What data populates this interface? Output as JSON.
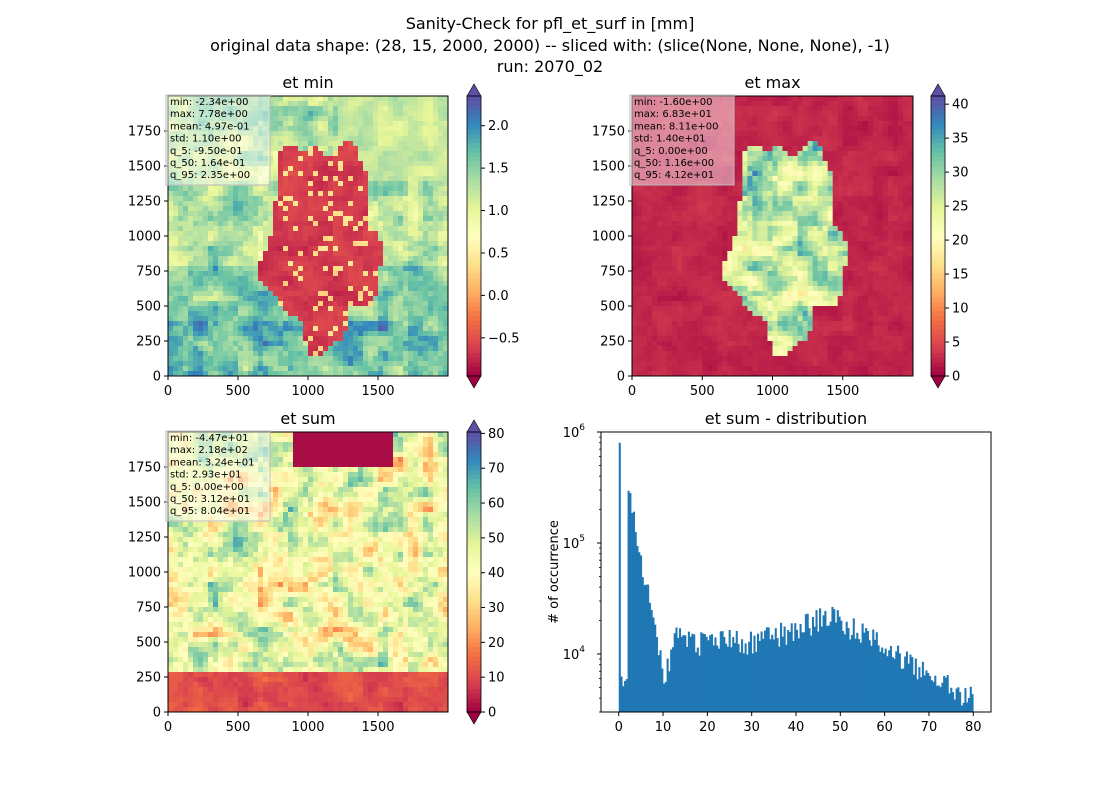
{
  "suptitle": [
    "Sanity-Check for pfl_et_surf in [mm]",
    "original data shape: (28, 15, 2000, 2000) -- sliced with: (slice(None, None, None), -1)",
    "run: 2070_02"
  ],
  "colormap": "Spectral",
  "chart_data": [
    {
      "type": "heatmap",
      "title": "et min",
      "x_ticks": [
        "0",
        "500",
        "1000",
        "1500"
      ],
      "y_ticks": [
        "0",
        "250",
        "500",
        "750",
        "1000",
        "1250",
        "1500",
        "1750"
      ],
      "xlim": [
        0,
        2000
      ],
      "ylim": [
        0,
        2000
      ],
      "colorbar_ticks": [
        "−0.5",
        "0.0",
        "0.5",
        "1.0",
        "1.5",
        "2.0"
      ],
      "colorbar_tick_values": [
        -0.5,
        0.0,
        0.5,
        1.0,
        1.5,
        2.0
      ],
      "colorbar_range": [
        -0.95,
        2.35
      ],
      "colorbar_extend": "both",
      "stats": [
        "min: -2.34e+00",
        "max: 7.78e+00",
        "mean: 4.97e-01",
        "std: 1.10e+00",
        "q_5: -9.50e-01",
        "q_50: 1.64e-01",
        "q_95: 2.35e+00"
      ]
    },
    {
      "type": "heatmap",
      "title": "et max",
      "x_ticks": [
        "0",
        "500",
        "1000",
        "1500"
      ],
      "y_ticks": [
        "0",
        "250",
        "500",
        "750",
        "1000",
        "1250",
        "1500",
        "1750"
      ],
      "xlim": [
        0,
        2000
      ],
      "ylim": [
        0,
        2000
      ],
      "colorbar_ticks": [
        "0",
        "5",
        "10",
        "15",
        "20",
        "25",
        "30",
        "35",
        "40"
      ],
      "colorbar_tick_values": [
        0,
        5,
        10,
        15,
        20,
        25,
        30,
        35,
        40
      ],
      "colorbar_range": [
        0,
        41.2
      ],
      "colorbar_extend": "both",
      "stats": [
        "min: -1.60e+00",
        "max: 6.83e+01",
        "mean: 8.11e+00",
        "std: 1.40e+01",
        "q_5: 0.00e+00",
        "q_50: 1.16e+00",
        "q_95: 4.12e+01"
      ]
    },
    {
      "type": "heatmap",
      "title": "et sum",
      "x_ticks": [
        "0",
        "500",
        "1000",
        "1500"
      ],
      "y_ticks": [
        "0",
        "250",
        "500",
        "750",
        "1000",
        "1250",
        "1500",
        "1750"
      ],
      "xlim": [
        0,
        2000
      ],
      "ylim": [
        0,
        2000
      ],
      "colorbar_ticks": [
        "0",
        "10",
        "20",
        "30",
        "40",
        "50",
        "60",
        "70",
        "80"
      ],
      "colorbar_tick_values": [
        0,
        10,
        20,
        30,
        40,
        50,
        60,
        70,
        80
      ],
      "colorbar_range": [
        0,
        80.4
      ],
      "colorbar_extend": "both",
      "stats": [
        "min: -4.47e+01",
        "max: 2.18e+02",
        "mean: 3.24e+01",
        "std: 2.93e+01",
        "q_5: 0.00e+00",
        "q_50: 3.12e+01",
        "q_95: 8.04e+01"
      ]
    },
    {
      "type": "bar",
      "title": "et sum - distribution",
      "ylabel": "# of occurrence",
      "yscale": "log",
      "ylim": [
        3000,
        1000000
      ],
      "xlim": [
        -4,
        84
      ],
      "x_ticks": [
        "0",
        "10",
        "20",
        "30",
        "40",
        "50",
        "60",
        "70",
        "80"
      ],
      "x_tick_values": [
        0,
        10,
        20,
        30,
        40,
        50,
        60,
        70,
        80
      ],
      "y_ticks": [
        "10",
        "10",
        "10"
      ],
      "y_tick_exponents": [
        "4",
        "5",
        "6"
      ],
      "y_tick_values": [
        10000,
        100000,
        1000000
      ],
      "bar_color": "#1f77b4",
      "bin_width": 0.4,
      "x": [
        0,
        10,
        13,
        20,
        25,
        30,
        35,
        40,
        45,
        48,
        50,
        55,
        60,
        65,
        70,
        75,
        80
      ],
      "values": [
        800000,
        6000,
        15000,
        12000,
        13500,
        13000,
        15000,
        17000,
        21000,
        24000,
        20000,
        15000,
        11500,
        8500,
        6800,
        5000,
        4000
      ]
    }
  ]
}
